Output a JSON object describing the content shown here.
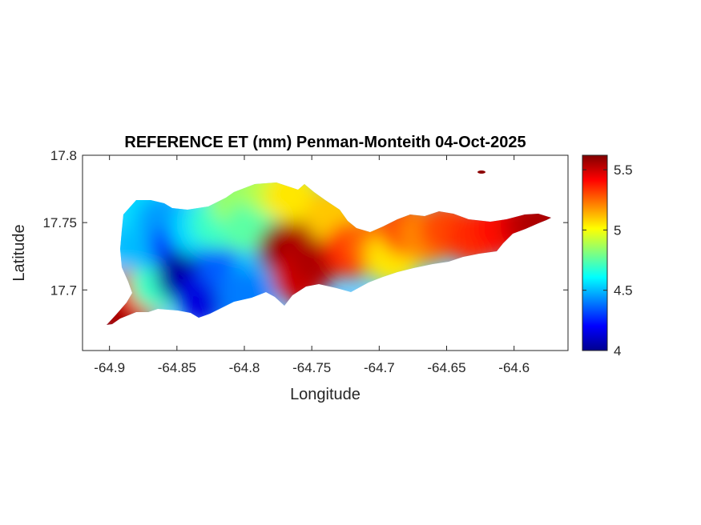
{
  "chart_data": {
    "type": "heatmap",
    "title": "REFERENCE ET (mm) Penman-Monteith 04-Oct-2025",
    "xlabel": "Longitude",
    "ylabel": "Latitude",
    "xlim": [
      -64.92,
      -64.56
    ],
    "ylim": [
      17.655,
      17.8
    ],
    "xticks": [
      -64.9,
      -64.85,
      -64.8,
      -64.75,
      -64.7,
      -64.65,
      -64.6
    ],
    "xtick_labels": [
      "-64.9",
      "-64.85",
      "-64.8",
      "-64.75",
      "-64.7",
      "-64.65",
      "-64.6"
    ],
    "yticks": [
      17.7,
      17.75,
      17.8
    ],
    "ytick_labels": [
      "17.7",
      "17.75",
      "17.8"
    ],
    "colorbar": {
      "colormap": "jet",
      "range": [
        4.0,
        5.62
      ],
      "ticks": [
        4,
        4.5,
        5,
        5.5
      ],
      "tick_labels": [
        "4",
        "4.5",
        "5",
        "5.5"
      ]
    },
    "grid": false,
    "field_samples": [
      [
        -64.895,
        17.685,
        5.55
      ],
      [
        -64.88,
        17.695,
        5.6
      ],
      [
        -64.875,
        17.7,
        5.4
      ],
      [
        -64.865,
        17.705,
        4.7
      ],
      [
        -64.88,
        17.735,
        4.5
      ],
      [
        -64.875,
        17.76,
        4.55
      ],
      [
        -64.86,
        17.75,
        4.45
      ],
      [
        -64.85,
        17.73,
        4.3
      ],
      [
        -64.845,
        17.71,
        4.05
      ],
      [
        -64.83,
        17.695,
        4.15
      ],
      [
        -64.835,
        17.745,
        4.55
      ],
      [
        -64.815,
        17.72,
        4.35
      ],
      [
        -64.82,
        17.75,
        4.7
      ],
      [
        -64.805,
        17.765,
        4.85
      ],
      [
        -64.795,
        17.745,
        4.75
      ],
      [
        -64.79,
        17.71,
        4.5
      ],
      [
        -64.8,
        17.695,
        4.4
      ],
      [
        -64.78,
        17.775,
        4.9
      ],
      [
        -64.77,
        17.73,
        5.6
      ],
      [
        -64.755,
        17.735,
        5.55
      ],
      [
        -64.76,
        17.71,
        5.5
      ],
      [
        -64.765,
        17.77,
        5.05
      ],
      [
        -64.745,
        17.725,
        5.55
      ],
      [
        -64.735,
        17.755,
        5.1
      ],
      [
        -64.72,
        17.73,
        5.35
      ],
      [
        -64.705,
        17.735,
        5.25
      ],
      [
        -64.69,
        17.725,
        5.05
      ],
      [
        -64.68,
        17.745,
        5.3
      ],
      [
        -64.665,
        17.74,
        5.2
      ],
      [
        -64.65,
        17.745,
        5.3
      ],
      [
        -64.63,
        17.74,
        5.35
      ],
      [
        -64.61,
        17.745,
        5.4
      ],
      [
        -64.59,
        17.748,
        5.5
      ],
      [
        -64.578,
        17.75,
        5.55
      ],
      [
        -64.625,
        17.788,
        5.6
      ]
    ]
  }
}
